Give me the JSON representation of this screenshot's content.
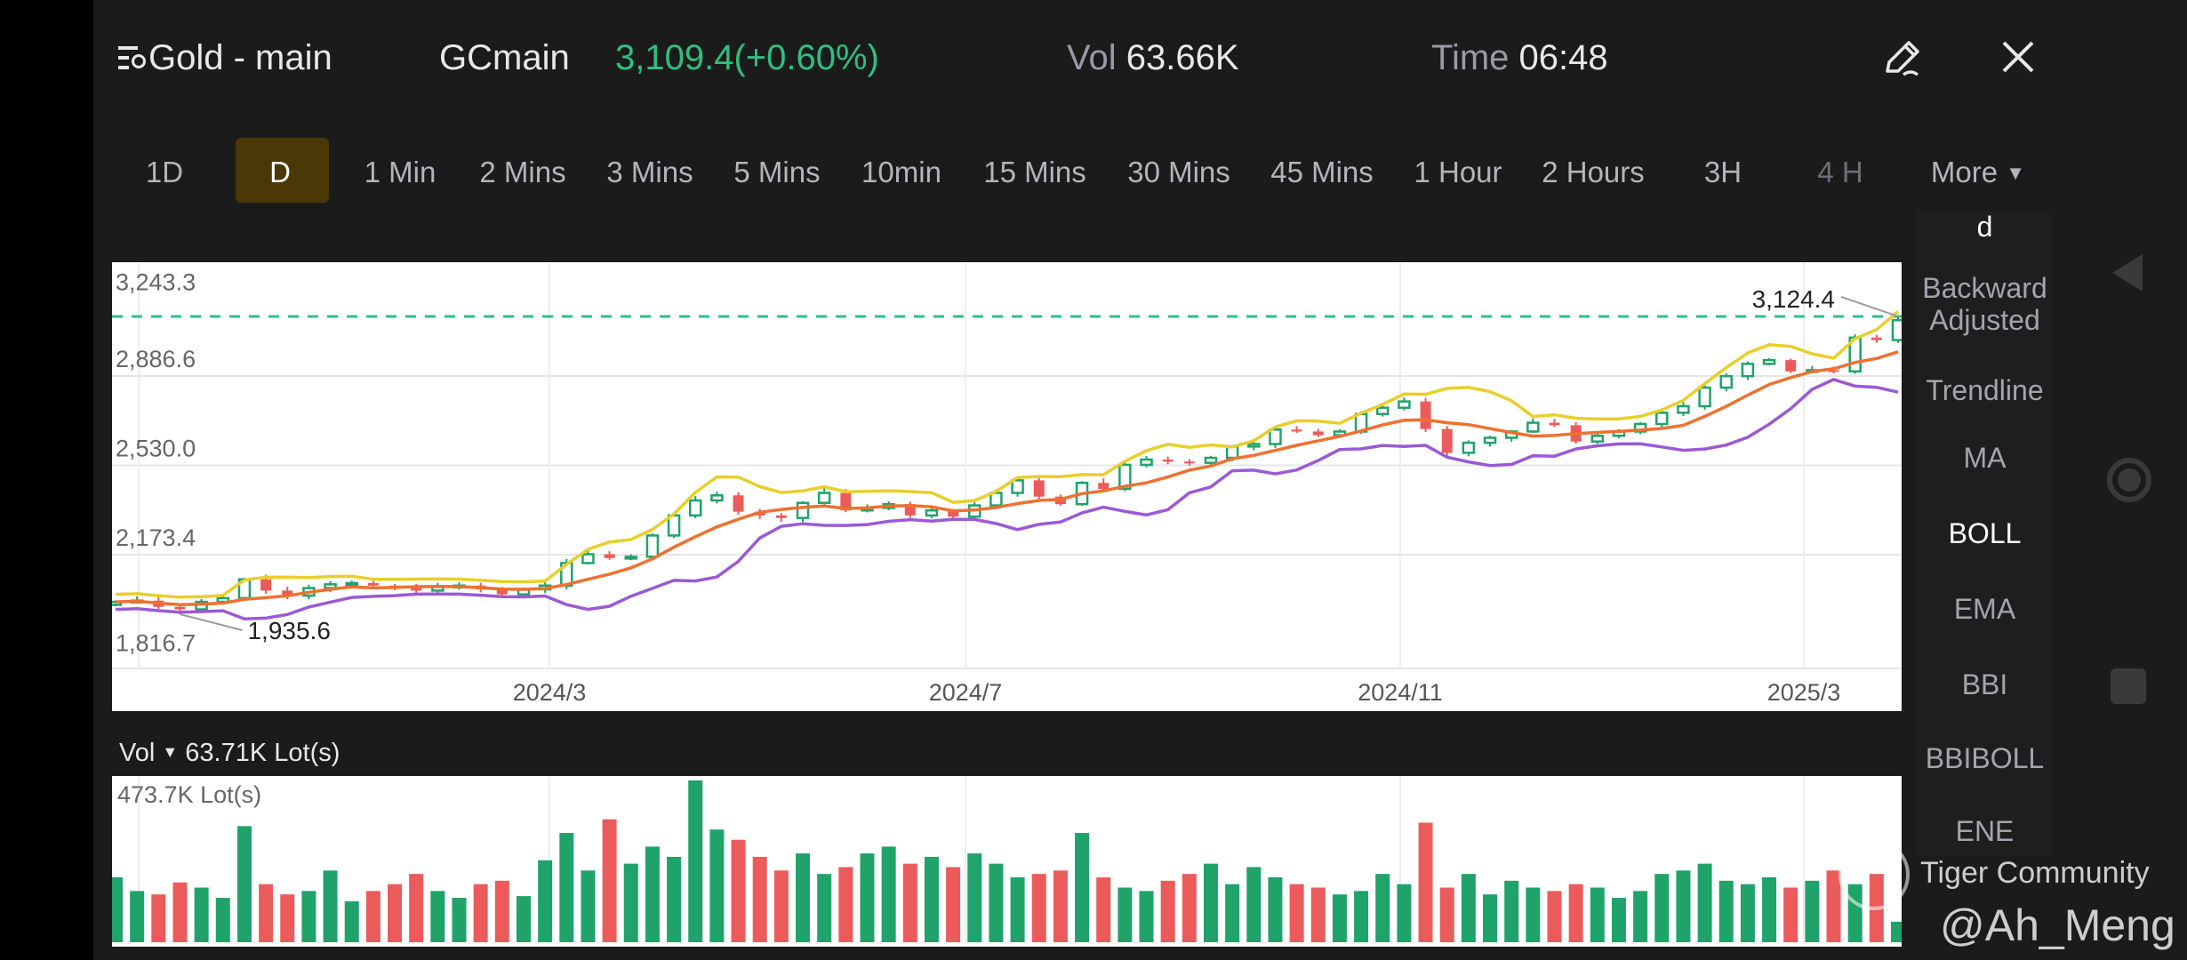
{
  "header": {
    "title": "Gold - main",
    "symbol": "GCmain",
    "price_change": "3,109.4(+0.60%)",
    "vol_label": "Vol",
    "vol_value": "63.66K",
    "time_label": "Time",
    "time_value": "06:48",
    "icons": [
      "menu-search-icon",
      "edit-icon",
      "close-icon"
    ]
  },
  "timeframes": {
    "items": [
      "1D",
      "D",
      "1 Min",
      "2 Mins",
      "3 Mins",
      "5 Mins",
      "10min",
      "15 Mins",
      "30 Mins",
      "45 Mins",
      "1 Hour",
      "2 Hours",
      "3H",
      "4 H"
    ],
    "selected": "D",
    "more_label": "More",
    "more_arrow": "▼"
  },
  "menu": {
    "items": [
      "d",
      "Backward Adjusted",
      "Trendline",
      "MA",
      "BOLL",
      "EMA",
      "BBI",
      "BBIBOLL",
      "ENE"
    ],
    "active": "BOLL"
  },
  "volume_header": {
    "label": "Vol",
    "arrow": "▼",
    "value": "63.71K Lot(s)",
    "max_label": "473.7K Lot(s)"
  },
  "watermark": {
    "community": "Tiger Community",
    "author": "@Ah_Meng"
  },
  "colors": {
    "up": "#1fa36a",
    "down": "#ec5b5b",
    "boll_upper": "#e8cf2a",
    "boll_mid": "#f07030",
    "boll_lower": "#9b59d6",
    "last_price_line": "#2fbf8f",
    "accent_selected": "#4a3806"
  },
  "chart_data": {
    "type": "candlestick",
    "indicator": "BOLL",
    "y_ticks": [
      "3,243.3",
      "2,886.6",
      "2,530.0",
      "2,173.4",
      "1,816.7"
    ],
    "y_tick_values": [
      3243.3,
      2886.6,
      2530.0,
      2173.4,
      1816.7
    ],
    "x_ticks": [
      "2024/3",
      "2024/7",
      "2024/11",
      "2025/3"
    ],
    "high_label": "3,124.4",
    "high_value": 3124.4,
    "low_label": "1,935.6",
    "low_value": 1935.6,
    "close": [
      1985,
      1990,
      1965,
      1955,
      1985,
      2000,
      2075,
      2030,
      2010,
      2040,
      2055,
      2060,
      2050,
      2040,
      2030,
      2045,
      2050,
      2035,
      2015,
      2035,
      2050,
      2140,
      2175,
      2160,
      2165,
      2250,
      2330,
      2390,
      2410,
      2345,
      2330,
      2320,
      2380,
      2420,
      2350,
      2360,
      2375,
      2330,
      2350,
      2325,
      2370,
      2420,
      2470,
      2405,
      2375,
      2460,
      2436,
      2532,
      2553,
      2545,
      2540,
      2560,
      2605,
      2615,
      2673,
      2665,
      2650,
      2665,
      2735,
      2760,
      2785,
      2675,
      2580,
      2620,
      2640,
      2665,
      2700,
      2690,
      2625,
      2648,
      2665,
      2695,
      2740,
      2766,
      2840,
      2886,
      2935,
      2950,
      2905,
      2910,
      2905,
      3040,
      3030,
      3109.4
    ],
    "volume_k_lots": [
      190,
      150,
      140,
      175,
      160,
      130,
      340,
      170,
      140,
      150,
      210,
      120,
      150,
      170,
      200,
      150,
      130,
      170,
      180,
      135,
      240,
      320,
      210,
      360,
      230,
      280,
      250,
      473.7,
      330,
      300,
      250,
      210,
      260,
      200,
      220,
      260,
      280,
      230,
      250,
      220,
      260,
      230,
      190,
      200,
      210,
      320,
      190,
      160,
      150,
      180,
      200,
      230,
      170,
      220,
      190,
      170,
      160,
      140,
      150,
      200,
      170,
      350,
      160,
      200,
      140,
      180,
      160,
      150,
      170,
      160,
      130,
      150,
      200,
      210,
      230,
      180,
      170,
      190,
      160,
      180,
      210,
      170,
      200,
      60
    ],
    "volume_max": 473.7
  }
}
